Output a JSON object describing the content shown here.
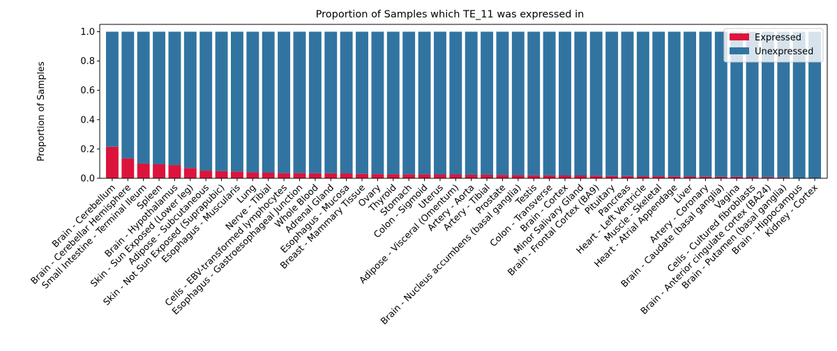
{
  "chart_data": {
    "type": "bar",
    "stacked": true,
    "title": "Proportion of Samples which TE_11 was expressed in",
    "xlabel": "",
    "ylabel": "Proportion of Samples",
    "ylim": [
      0,
      1.05
    ],
    "yticks": [
      "0.0",
      "0.2",
      "0.4",
      "0.6",
      "0.8",
      "1.0"
    ],
    "grid": false,
    "legend_position": "top-right",
    "categories": [
      "Brain - Cerebellum",
      "Brain - Cerebellar Hemisphere",
      "Small Intestine - Terminal Ileum",
      "Spleen",
      "Brain - Hypothalamus",
      "Skin - Sun Exposed (Lower leg)",
      "Adipose - Subcutaneous",
      "Skin - Not Sun Exposed (Suprapubic)",
      "Esophagus - Muscularis",
      "Lung",
      "Nerve - Tibial",
      "Cells - EBV-transformed lymphocytes",
      "Esophagus - Gastroesophageal Junction",
      "Whole Blood",
      "Adrenal Gland",
      "Esophagus - Mucosa",
      "Breast - Mammary Tissue",
      "Ovary",
      "Thyroid",
      "Stomach",
      "Colon - Sigmoid",
      "Uterus",
      "Adipose - Visceral (Omentum)",
      "Artery - Aorta",
      "Artery - Tibial",
      "Prostate",
      "Brain - Nucleus accumbens (basal ganglia)",
      "Testis",
      "Colon - Transverse",
      "Brain - Cortex",
      "Minor Salivary Gland",
      "Brain - Frontal Cortex (BA9)",
      "Pituitary",
      "Pancreas",
      "Heart - Left Ventricle",
      "Muscle - Skeletal",
      "Heart - Atrial Appendage",
      "Liver",
      "Artery - Coronary",
      "Brain - Caudate (basal ganglia)",
      "Vagina",
      "Cells - Cultured fibroblasts",
      "Brain - Anterior cingulate cortex (BA24)",
      "Brain - Putamen (basal ganglia)",
      "Brain - Hippocampus",
      "Kidney - Cortex"
    ],
    "series": [
      {
        "name": "Expressed",
        "color": "#dc143c",
        "values": [
          0.215,
          0.135,
          0.1,
          0.095,
          0.09,
          0.07,
          0.052,
          0.048,
          0.046,
          0.04,
          0.038,
          0.035,
          0.035,
          0.034,
          0.034,
          0.033,
          0.03,
          0.028,
          0.028,
          0.027,
          0.027,
          0.026,
          0.026,
          0.024,
          0.024,
          0.023,
          0.021,
          0.02,
          0.02,
          0.019,
          0.019,
          0.018,
          0.015,
          0.015,
          0.014,
          0.014,
          0.013,
          0.012,
          0.011,
          0.01,
          0.01,
          0.009,
          0.008,
          0.006,
          0.0,
          0.0
        ]
      },
      {
        "name": "Unexpressed",
        "color": "#3274a1",
        "values": [
          0.785,
          0.865,
          0.9,
          0.905,
          0.91,
          0.93,
          0.948,
          0.952,
          0.954,
          0.96,
          0.962,
          0.965,
          0.965,
          0.966,
          0.966,
          0.967,
          0.97,
          0.972,
          0.972,
          0.973,
          0.973,
          0.974,
          0.974,
          0.976,
          0.976,
          0.977,
          0.979,
          0.98,
          0.98,
          0.981,
          0.981,
          0.982,
          0.985,
          0.985,
          0.986,
          0.986,
          0.987,
          0.988,
          0.989,
          0.99,
          0.99,
          0.991,
          0.992,
          0.994,
          1.0,
          1.0
        ]
      }
    ]
  }
}
